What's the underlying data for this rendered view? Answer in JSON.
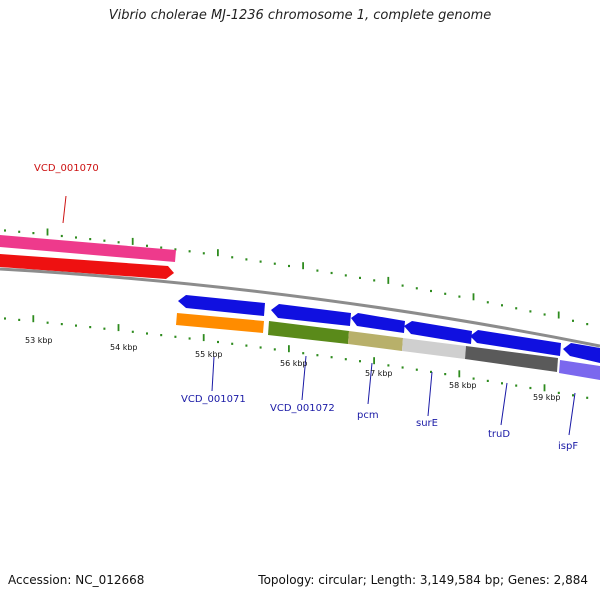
{
  "title": "Vibrio cholerae MJ-1236 chromosome 1, complete genome",
  "footer": {
    "accession_label": "Accession:",
    "accession": "NC_012668",
    "topology_label": "Topology:",
    "topology": "circular",
    "length_label": "Length:",
    "length": "3,149,584 bp",
    "genes_label": "Genes:",
    "genes": "2,884"
  },
  "scale_labels": [
    "53 kbp",
    "54 kbp",
    "55 kbp",
    "56 kbp",
    "57 kbp",
    "58 kbp",
    "59 kbp"
  ],
  "colors": {
    "backbone": "#8c8c8c",
    "tick": "#2e8b1e",
    "forward_label": "#1a1aa6",
    "reverse_label": "#cc1111"
  },
  "gene_labels": [
    {
      "id": "VCD_001070",
      "color": "#cc1111"
    },
    {
      "id": "VCD_001071",
      "color": "#1a1aa6"
    },
    {
      "id": "VCD_001072",
      "color": "#1a1aa6"
    },
    {
      "id": "pcm",
      "color": "#1a1aa6"
    },
    {
      "id": "surE",
      "color": "#1a1aa6"
    },
    {
      "id": "truD",
      "color": "#1a1aa6"
    },
    {
      "id": "ispF",
      "color": "#1a1aa6"
    }
  ]
}
